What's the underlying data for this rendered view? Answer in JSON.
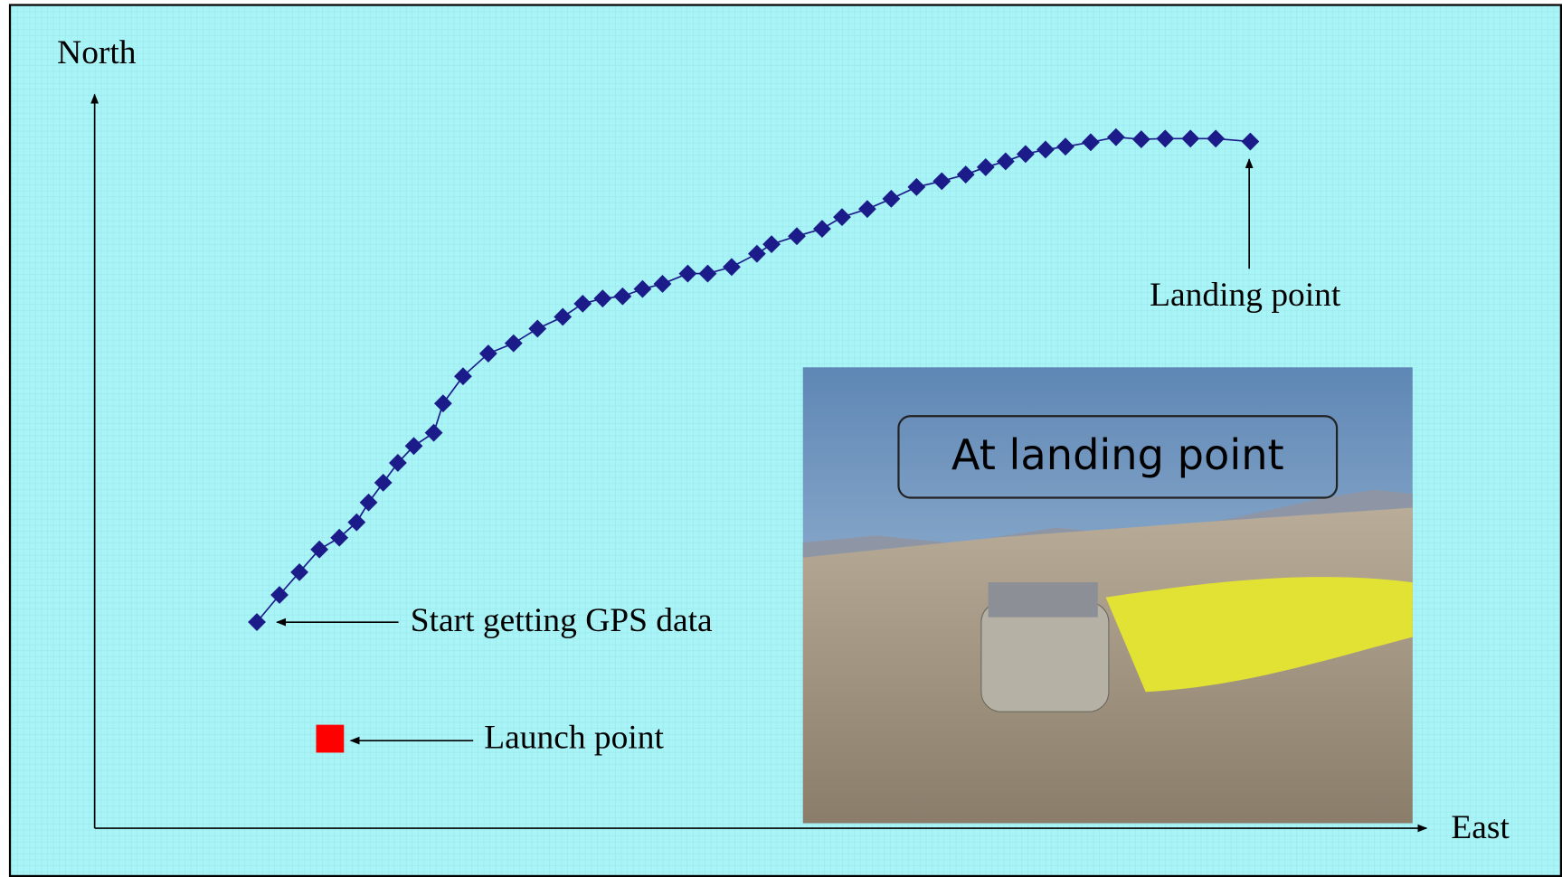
{
  "chart_data": {
    "type": "scatter",
    "x_label": "East",
    "y_label": "North",
    "xlim": [
      0,
      100
    ],
    "ylim": [
      0,
      100
    ],
    "series": [
      {
        "color": "#1b1b8a",
        "marker": "diamond",
        "line": true,
        "x": [
          12.2,
          13.9,
          15.4,
          16.9,
          18.4,
          19.7,
          20.6,
          21.7,
          22.8,
          24.0,
          25.5,
          26.2,
          27.7,
          29.6,
          31.5,
          33.3,
          35.2,
          36.7,
          38.2,
          39.7,
          41.2,
          42.7,
          44.6,
          46.1,
          47.9,
          49.8,
          50.9,
          52.8,
          54.7,
          56.2,
          58.1,
          59.9,
          61.8,
          63.7,
          65.5,
          67.0,
          68.5,
          70.0,
          71.5,
          73.0,
          74.9,
          76.8,
          78.7,
          80.5,
          82.4,
          84.3,
          86.9
        ],
        "values": [
          28.1,
          31.8,
          34.9,
          38.0,
          39.6,
          41.7,
          44.4,
          47.1,
          49.8,
          52.1,
          53.9,
          57.9,
          61.6,
          64.7,
          66.1,
          68.1,
          69.7,
          71.5,
          72.2,
          72.5,
          73.5,
          74.2,
          75.6,
          75.6,
          76.5,
          78.3,
          79.6,
          80.7,
          81.7,
          83.3,
          84.4,
          85.8,
          87.4,
          88.2,
          89.1,
          90.1,
          90.9,
          91.9,
          92.5,
          92.9,
          93.5,
          94.2,
          93.9,
          94.0,
          94.0,
          94.0,
          93.6
        ]
      },
      {
        "color": "#ff0000",
        "marker": "square",
        "line": false,
        "x": [
          17.7
        ],
        "values": [
          12.2
        ]
      }
    ],
    "annotations": [
      "Start getting GPS data",
      "Launch point",
      "Landing point"
    ],
    "photo_caption": "At landing point"
  }
}
